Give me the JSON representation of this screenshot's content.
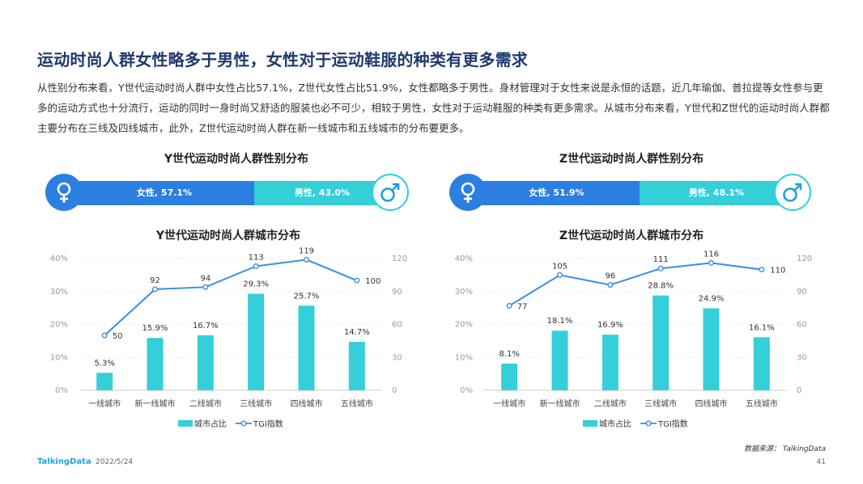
{
  "title": "运动时尚人群女性略多于男性，女性对于运动鞋服的种类有更多需求",
  "body": "从性别分布来看，Y世代运动时尚人群中女性占比57.1%，Z世代女性占比51.9%，女性都略多于男性。身材管理对于女性来说是永恒的话题，近几年瑜伽、普拉提等女性参与更多的运动方式也十分流行，运动的同时一身时尚又舒适的服装也必不可少，相较于男性，女性对于运动鞋服的种类有更多需求。从城市分布来看，Y世代和Z世代的运动时尚人群都主要分布在三线及四线城市，此外，Z世代运动时尚人群在新一线城市和五线城市的分布要更多。",
  "gender": {
    "y": {
      "title": "Y世代运动时尚人群性别分布",
      "female_label": "女性, 57.1%",
      "male_label": "男性, 43.0%",
      "female": 57.1,
      "male": 43.0
    },
    "z": {
      "title": "Z世代运动时尚人群性别分布",
      "female_label": "女性, 51.9%",
      "male_label": "男性, 48.1%",
      "female": 51.9,
      "male": 48.1
    }
  },
  "icons": {
    "female": "female-symbol-icon",
    "male": "male-symbol-icon"
  },
  "colors": {
    "title": "#1f3a6e",
    "bar": "#35cfd9",
    "female": "#2b7fe0",
    "line": "#3a8ee6"
  },
  "chart_data": [
    {
      "type": "bar",
      "title": "Y世代运动时尚人群城市分布",
      "categories": [
        "一线城市",
        "新一线城市",
        "二线城市",
        "三线城市",
        "四线城市",
        "五线城市"
      ],
      "series": [
        {
          "name": "城市占比",
          "type": "bar",
          "axis": "left",
          "values": [
            5.3,
            15.9,
            16.7,
            29.3,
            25.7,
            14.7
          ],
          "labels": [
            "5.3%",
            "15.9%",
            "16.7%",
            "29.3%",
            "25.7%",
            "14.7%"
          ]
        },
        {
          "name": "TGI指数",
          "type": "line",
          "axis": "right",
          "values": [
            50,
            92,
            94,
            113,
            119,
            100
          ],
          "labels": [
            "50",
            "92",
            "94",
            "113",
            "119",
            "100"
          ]
        }
      ],
      "ylim_left": [
        0,
        40
      ],
      "yticks_left": [
        "0%",
        "10%",
        "20%",
        "30%",
        "40%"
      ],
      "ylim_right": [
        0,
        120
      ],
      "yticks_right": [
        "0",
        "30",
        "60",
        "90",
        "120"
      ],
      "legend": "bottom"
    },
    {
      "type": "bar",
      "title": "Z世代运动时尚人群城市分布",
      "categories": [
        "一线城市",
        "新一线城市",
        "二线城市",
        "三线城市",
        "四线城市",
        "五线城市"
      ],
      "series": [
        {
          "name": "城市占比",
          "type": "bar",
          "axis": "left",
          "values": [
            8.1,
            18.1,
            16.9,
            28.8,
            24.9,
            16.1
          ],
          "labels": [
            "8.1%",
            "18.1%",
            "16.9%",
            "28.8%",
            "24.9%",
            "16.1%"
          ]
        },
        {
          "name": "TGI指数",
          "type": "line",
          "axis": "right",
          "values": [
            77,
            105,
            96,
            111,
            116,
            110
          ],
          "labels": [
            "77",
            "105",
            "96",
            "111",
            "116",
            "110"
          ]
        }
      ],
      "ylim_left": [
        0,
        40
      ],
      "yticks_left": [
        "0%",
        "10%",
        "20%",
        "30%",
        "40%"
      ],
      "ylim_right": [
        0,
        120
      ],
      "yticks_right": [
        "0",
        "30",
        "60",
        "90",
        "120"
      ],
      "legend": "bottom"
    }
  ],
  "source": "数据来源： TalkingData",
  "footer": {
    "logo": "TalkingData",
    "date": "2022/5/24",
    "page": "41"
  }
}
